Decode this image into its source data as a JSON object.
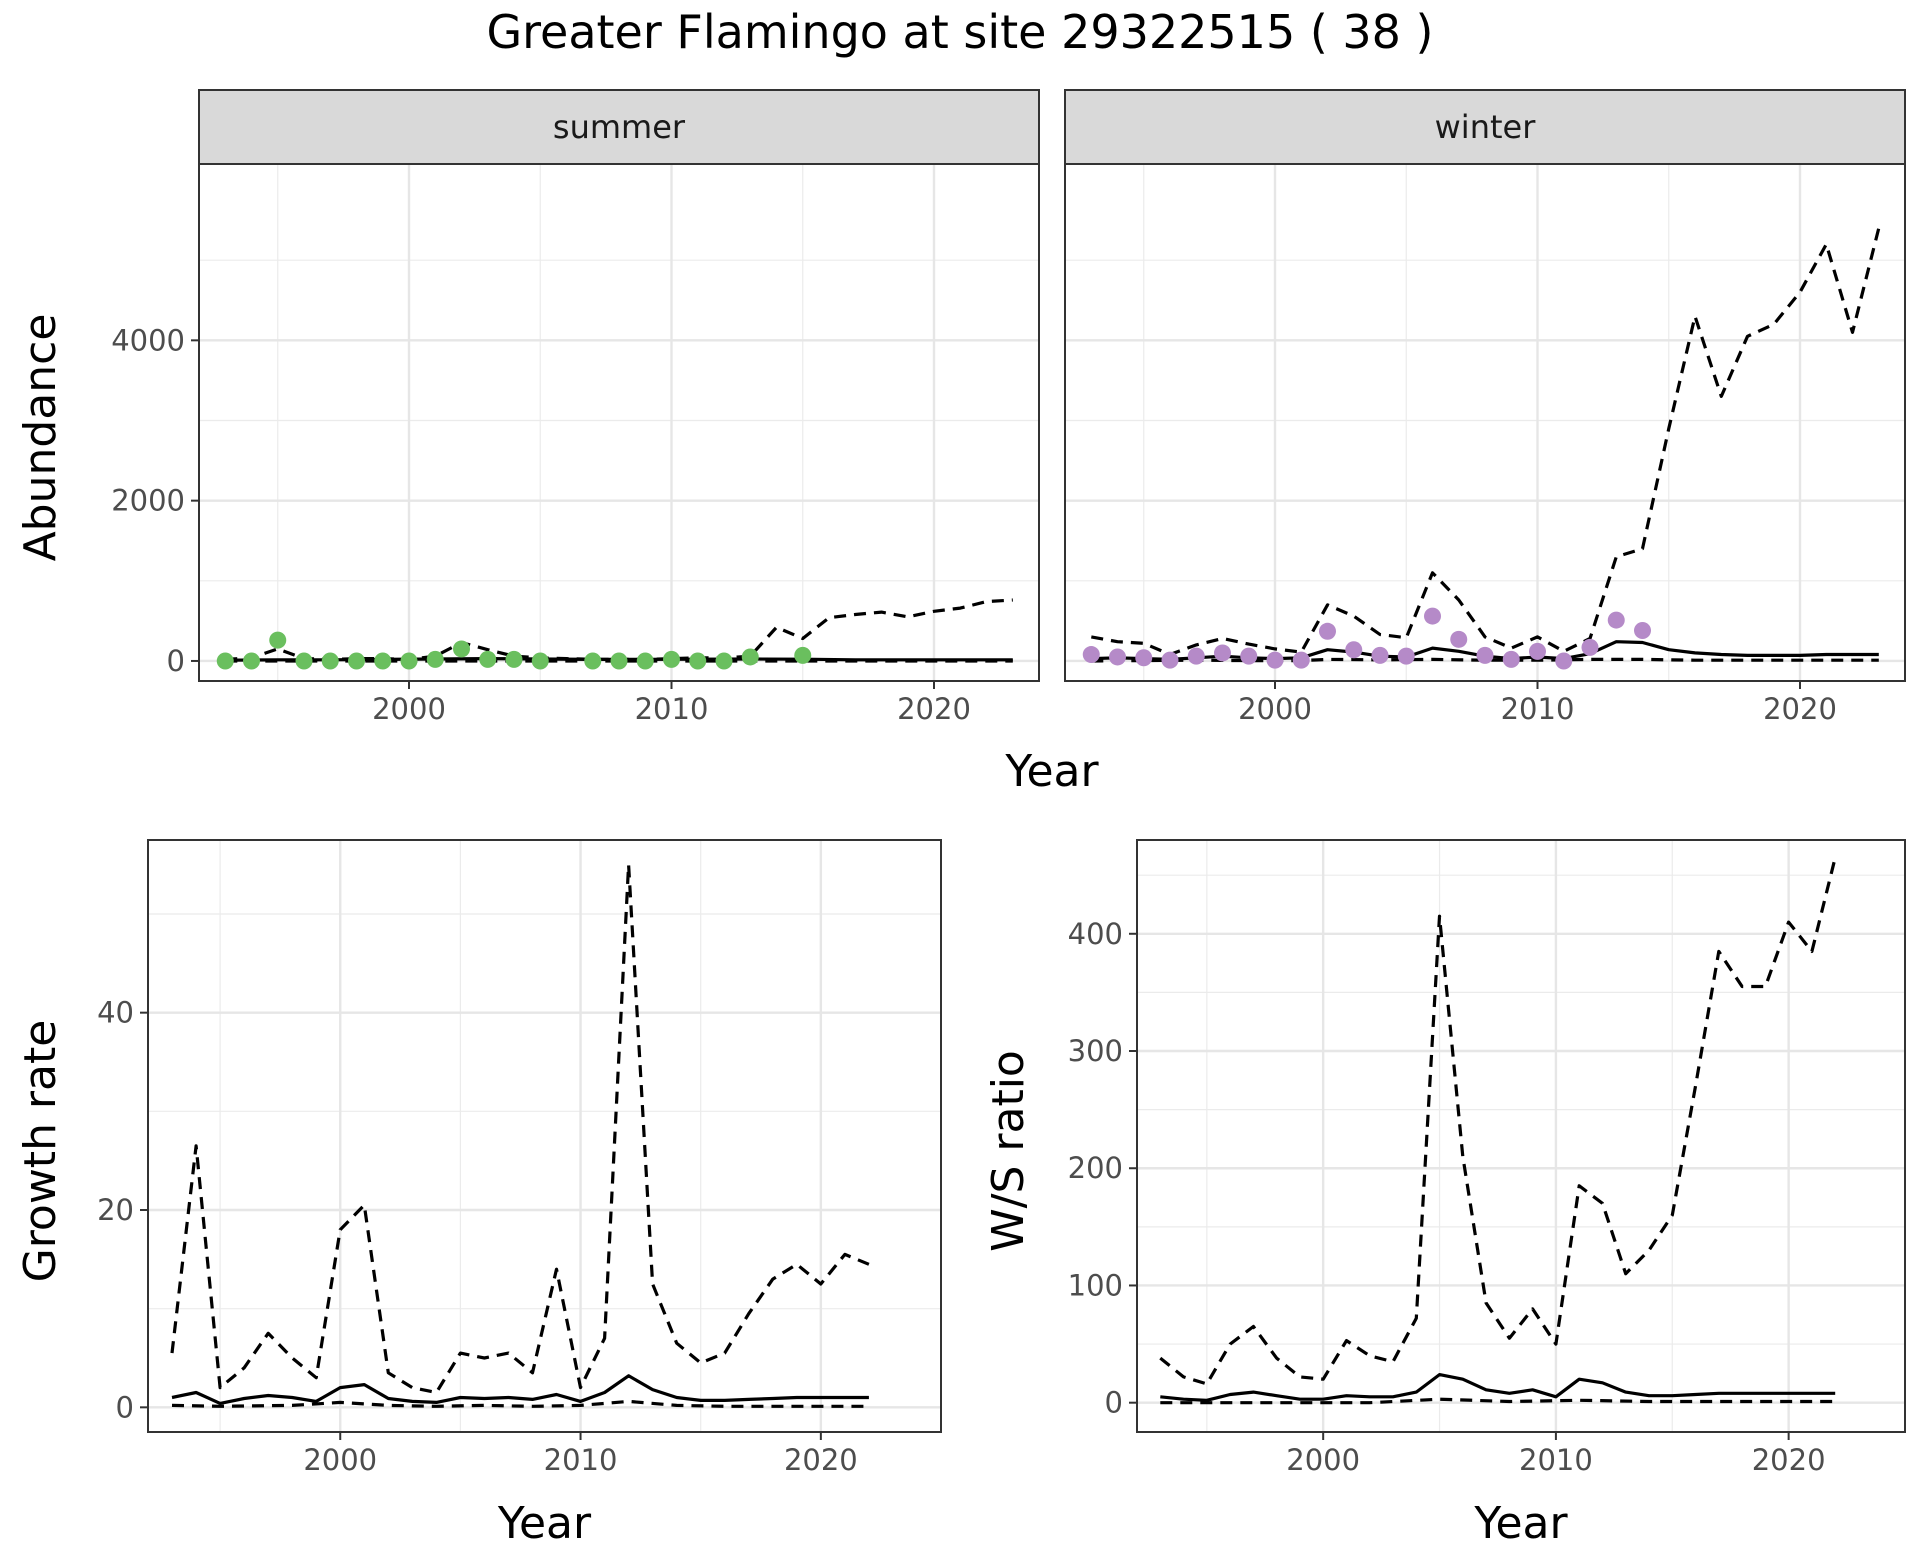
{
  "title": "Greater Flamingo at site 29322515 ( 38 )",
  "colors": {
    "summer_points": "#6abf5e",
    "winter_points": "#b58ac8",
    "line": "#000000"
  },
  "chart_data": [
    {
      "type": "line",
      "panel": "summer",
      "strip_label": "summer",
      "xlabel": "Year",
      "ylabel": "Abundance",
      "xlim": [
        1992,
        2024
      ],
      "ylim": [
        -250,
        6200
      ],
      "x_ticks": [
        2000,
        2010,
        2020
      ],
      "y_ticks": [
        0,
        2000,
        4000
      ],
      "grid": true,
      "observed_points": {
        "x": [
          1993,
          1994,
          1995,
          1996,
          1997,
          1998,
          1999,
          2000,
          2001,
          2002,
          2003,
          2004,
          2005,
          2007,
          2008,
          2009,
          2010,
          2011,
          2012,
          2013,
          2015
        ],
        "y": [
          0,
          0,
          260,
          0,
          0,
          0,
          0,
          0,
          20,
          150,
          20,
          20,
          0,
          0,
          0,
          0,
          20,
          0,
          0,
          50,
          70
        ]
      },
      "series": [
        {
          "style": "solid",
          "x": [
            1993,
            1995,
            1997,
            1999,
            2001,
            2003,
            2005,
            2007,
            2009,
            2011,
            2013,
            2015,
            2017,
            2019,
            2021,
            2023
          ],
          "values": [
            10,
            15,
            15,
            20,
            25,
            30,
            25,
            20,
            20,
            22,
            25,
            22,
            15,
            15,
            15,
            15
          ]
        },
        {
          "style": "dashed",
          "x": [
            1993,
            1994,
            1995,
            1996,
            1997,
            1998,
            1999,
            2000,
            2001,
            2002,
            2003,
            2004,
            2005,
            2006,
            2007,
            2008,
            2009,
            2010,
            2011,
            2012,
            2013,
            2014,
            2015,
            2016,
            2017,
            2018,
            2019,
            2020,
            2021,
            2022,
            2023
          ],
          "values": [
            20,
            40,
            150,
            30,
            20,
            30,
            30,
            20,
            60,
            230,
            140,
            60,
            40,
            30,
            20,
            20,
            20,
            30,
            40,
            40,
            60,
            420,
            280,
            540,
            580,
            610,
            550,
            620,
            660,
            740,
            760
          ]
        },
        {
          "style": "dashed",
          "x": [
            1993,
            1998,
            2003,
            2008,
            2013,
            2018,
            2023
          ],
          "values": [
            0,
            0,
            0,
            0,
            0,
            0,
            0
          ]
        }
      ]
    },
    {
      "type": "line",
      "panel": "winter",
      "strip_label": "winter",
      "xlabel": "Year",
      "ylabel": "Abundance",
      "xlim": [
        1992,
        2024
      ],
      "ylim": [
        -250,
        6200
      ],
      "x_ticks": [
        2000,
        2010,
        2020
      ],
      "y_ticks": [
        0,
        2000,
        4000
      ],
      "grid": true,
      "observed_points": {
        "x": [
          1993,
          1994,
          1995,
          1996,
          1997,
          1998,
          1999,
          2000,
          2001,
          2002,
          2003,
          2004,
          2005,
          2006,
          2007,
          2008,
          2009,
          2010,
          2011,
          2012,
          2013,
          2014
        ],
        "y": [
          80,
          50,
          40,
          10,
          60,
          100,
          60,
          10,
          10,
          370,
          140,
          70,
          60,
          560,
          270,
          70,
          20,
          120,
          0,
          170,
          510,
          380
        ]
      },
      "series": [
        {
          "style": "solid",
          "x": [
            1993,
            1994,
            1995,
            1996,
            1997,
            1998,
            1999,
            2000,
            2001,
            2002,
            2003,
            2004,
            2005,
            2006,
            2007,
            2008,
            2009,
            2010,
            2011,
            2012,
            2013,
            2014,
            2015,
            2016,
            2017,
            2018,
            2019,
            2020,
            2021,
            2022,
            2023
          ],
          "values": [
            30,
            40,
            30,
            20,
            40,
            60,
            40,
            30,
            40,
            140,
            110,
            60,
            50,
            160,
            120,
            60,
            30,
            50,
            30,
            90,
            240,
            230,
            140,
            100,
            80,
            70,
            70,
            70,
            80,
            80,
            80
          ]
        },
        {
          "style": "dashed",
          "x": [
            1993,
            1994,
            1995,
            1996,
            1997,
            1998,
            1999,
            2000,
            2001,
            2002,
            2003,
            2004,
            2005,
            2006,
            2007,
            2008,
            2009,
            2010,
            2011,
            2012,
            2013,
            2014,
            2015,
            2016,
            2017,
            2018,
            2019,
            2020,
            2021,
            2022,
            2023
          ],
          "values": [
            300,
            240,
            220,
            80,
            200,
            280,
            210,
            150,
            110,
            700,
            560,
            330,
            290,
            1100,
            760,
            300,
            160,
            300,
            120,
            280,
            1300,
            1400,
            2900,
            4300,
            3300,
            4050,
            4200,
            4600,
            5200,
            4100,
            5400
          ]
        },
        {
          "style": "dashed",
          "x": [
            1993,
            1995,
            1997,
            1999,
            2001,
            2002,
            2004,
            2006,
            2008,
            2010,
            2012,
            2014,
            2016,
            2018,
            2020,
            2023
          ],
          "values": [
            0,
            5,
            10,
            5,
            5,
            20,
            15,
            20,
            10,
            10,
            20,
            20,
            10,
            10,
            10,
            10
          ]
        }
      ]
    },
    {
      "type": "line",
      "panel": "growth",
      "xlabel": "Year",
      "ylabel": "Growth rate",
      "xlim": [
        1992,
        2025
      ],
      "ylim": [
        -2.5,
        57.5
      ],
      "x_ticks": [
        2000,
        2010,
        2020
      ],
      "y_ticks": [
        0,
        20,
        40
      ],
      "grid": true,
      "series": [
        {
          "style": "solid",
          "x": [
            1993,
            1994,
            1995,
            1996,
            1997,
            1998,
            1999,
            2000,
            2001,
            2002,
            2003,
            2004,
            2005,
            2006,
            2007,
            2008,
            2009,
            2010,
            2011,
            2012,
            2013,
            2014,
            2015,
            2016,
            2017,
            2018,
            2019,
            2020,
            2021,
            2022
          ],
          "values": [
            1.0,
            1.5,
            0.4,
            0.9,
            1.2,
            1.0,
            0.6,
            2.0,
            2.3,
            0.9,
            0.6,
            0.5,
            1.0,
            0.9,
            1.0,
            0.8,
            1.3,
            0.6,
            1.5,
            3.2,
            1.8,
            1.0,
            0.7,
            0.7,
            0.8,
            0.9,
            1.0,
            1.0,
            1.0,
            1.0
          ]
        },
        {
          "style": "dashed",
          "x": [
            1993,
            1994,
            1995,
            1996,
            1997,
            1998,
            1999,
            2000,
            2001,
            2002,
            2003,
            2004,
            2005,
            2006,
            2007,
            2008,
            2009,
            2010,
            2011,
            2012,
            2013,
            2014,
            2015,
            2016,
            2017,
            2018,
            2019,
            2020,
            2021,
            2022
          ],
          "values": [
            5.5,
            26.5,
            2.0,
            4.0,
            7.5,
            5.0,
            3.0,
            18.0,
            20.5,
            3.5,
            2.0,
            1.5,
            5.5,
            5.0,
            5.5,
            3.5,
            14.0,
            2.0,
            7.0,
            55.0,
            12.5,
            6.5,
            4.5,
            5.5,
            9.5,
            13.0,
            14.5,
            12.5,
            15.5,
            14.5
          ]
        },
        {
          "style": "dashed",
          "x": [
            1993,
            1995,
            1998,
            2000,
            2002,
            2004,
            2006,
            2008,
            2010,
            2012,
            2014,
            2016,
            2018,
            2020,
            2022
          ],
          "values": [
            0.2,
            0.1,
            0.2,
            0.5,
            0.2,
            0.1,
            0.2,
            0.1,
            0.2,
            0.6,
            0.2,
            0.1,
            0.1,
            0.1,
            0.1
          ]
        }
      ]
    },
    {
      "type": "line",
      "panel": "ws_ratio",
      "xlabel": "Year",
      "ylabel": "W/S ratio",
      "xlim": [
        1992,
        2025
      ],
      "ylim": [
        -25,
        480
      ],
      "x_ticks": [
        2000,
        2010,
        2020
      ],
      "y_ticks": [
        0,
        100,
        200,
        300,
        400
      ],
      "grid": true,
      "series": [
        {
          "style": "solid",
          "x": [
            1993,
            1994,
            1995,
            1996,
            1997,
            1998,
            1999,
            2000,
            2001,
            2002,
            2003,
            2004,
            2005,
            2006,
            2007,
            2008,
            2009,
            2010,
            2011,
            2012,
            2013,
            2014,
            2015,
            2016,
            2017,
            2018,
            2019,
            2020,
            2021,
            2022
          ],
          "values": [
            5,
            3,
            2,
            7,
            9,
            6,
            3,
            3,
            6,
            5,
            5,
            9,
            24,
            20,
            11,
            8,
            11,
            5,
            20,
            17,
            9,
            6,
            6,
            7,
            8,
            8,
            8,
            8,
            8,
            8
          ]
        },
        {
          "style": "dashed",
          "x": [
            1993,
            1994,
            1995,
            1996,
            1997,
            1998,
            1999,
            2000,
            2001,
            2002,
            2003,
            2004,
            2005,
            2006,
            2007,
            2008,
            2009,
            2010,
            2011,
            2012,
            2013,
            2014,
            2015,
            2016,
            2017,
            2018,
            2019,
            2020,
            2021,
            2022
          ],
          "values": [
            38,
            22,
            16,
            50,
            65,
            38,
            22,
            20,
            53,
            40,
            35,
            72,
            415,
            210,
            85,
            55,
            80,
            50,
            185,
            170,
            110,
            130,
            160,
            270,
            385,
            355,
            355,
            410,
            385,
            465
          ]
        },
        {
          "style": "dashed",
          "x": [
            1993,
            1996,
            1999,
            2002,
            2005,
            2008,
            2011,
            2014,
            2017,
            2020,
            2022
          ],
          "values": [
            0,
            0,
            0,
            0,
            3,
            1,
            2,
            1,
            1,
            1,
            1
          ]
        }
      ]
    }
  ]
}
